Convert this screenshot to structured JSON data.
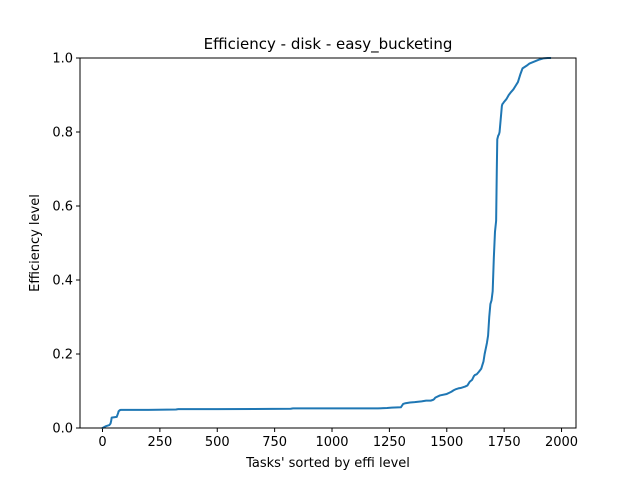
{
  "chart_data": {
    "type": "line",
    "title": "Efficiency - disk - easy_bucketing",
    "xlabel": "Tasks' sorted by effi level",
    "ylabel": "Efficiency level",
    "xlim": [
      -98,
      2063
    ],
    "ylim": [
      0,
      1.0
    ],
    "xticks": [
      0,
      250,
      500,
      750,
      1000,
      1250,
      1500,
      1750,
      2000
    ],
    "yticks": [
      0.0,
      0.2,
      0.4,
      0.6,
      0.8,
      1.0
    ],
    "xtick_labels": [
      "0",
      "250",
      "500",
      "750",
      "1000",
      "1250",
      "1500",
      "1750",
      "2000"
    ],
    "ytick_labels": [
      "0.0",
      "0.2",
      "0.4",
      "0.6",
      "0.8",
      "1.0"
    ],
    "grid": false,
    "series": [
      {
        "color": "#1f77b4",
        "x": [
          0,
          15,
          30,
          35,
          38,
          40,
          62,
          68,
          70,
          75,
          80,
          90,
          100,
          200,
          320,
          330,
          500,
          820,
          830,
          1000,
          1200,
          1240,
          1260,
          1300,
          1310,
          1320,
          1340,
          1360,
          1390,
          1410,
          1430,
          1440,
          1445,
          1450,
          1470,
          1500,
          1510,
          1520,
          1530,
          1540,
          1550,
          1560,
          1570,
          1580,
          1590,
          1600,
          1610,
          1618,
          1622,
          1630,
          1640,
          1650,
          1655,
          1660,
          1665,
          1670,
          1675,
          1680,
          1685,
          1690,
          1695,
          1700,
          1705,
          1710,
          1715,
          1718,
          1720,
          1722,
          1724,
          1726,
          1728,
          1730,
          1740,
          1742,
          1746,
          1748,
          1752,
          1760,
          1770,
          1780,
          1790,
          1800,
          1810,
          1820,
          1830,
          1840,
          1850,
          1860,
          1880,
          1900,
          1920,
          1940,
          1950
        ],
        "y": [
          0.0,
          0.005,
          0.008,
          0.012,
          0.02,
          0.028,
          0.03,
          0.04,
          0.045,
          0.048,
          0.049,
          0.049,
          0.049,
          0.049,
          0.05,
          0.051,
          0.051,
          0.052,
          0.053,
          0.053,
          0.053,
          0.054,
          0.055,
          0.056,
          0.065,
          0.067,
          0.069,
          0.07,
          0.072,
          0.074,
          0.074,
          0.076,
          0.078,
          0.082,
          0.088,
          0.092,
          0.095,
          0.098,
          0.102,
          0.105,
          0.107,
          0.108,
          0.11,
          0.112,
          0.115,
          0.125,
          0.13,
          0.14,
          0.143,
          0.145,
          0.152,
          0.16,
          0.17,
          0.18,
          0.2,
          0.215,
          0.23,
          0.25,
          0.3,
          0.335,
          0.345,
          0.37,
          0.46,
          0.53,
          0.56,
          0.7,
          0.78,
          0.785,
          0.79,
          0.792,
          0.795,
          0.8,
          0.87,
          0.875,
          0.878,
          0.88,
          0.883,
          0.889,
          0.9,
          0.908,
          0.915,
          0.925,
          0.935,
          0.955,
          0.972,
          0.976,
          0.98,
          0.985,
          0.99,
          0.995,
          0.999,
          1.0,
          1.0
        ]
      }
    ]
  }
}
